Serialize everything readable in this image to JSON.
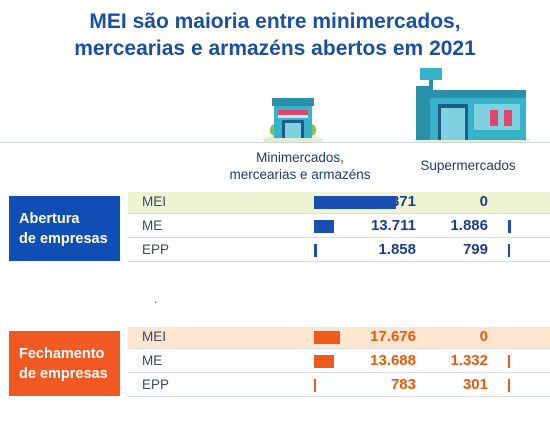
{
  "title_line1": "MEI são maioria entre minimercados,",
  "title_line2": "mercearias e armazéns abertos em 2021",
  "columns": {
    "col1_line1": "Minimercados,",
    "col1_line2": "mercearias e armazéns",
    "col2": "Supermercados"
  },
  "colors": {
    "blue": "#1a4fb0",
    "orange": "#ef5a1d",
    "row_highlight_blue": "#eef4d2",
    "row_highlight_orange": "#fde6cf"
  },
  "icons": {
    "minimarket": "small-store-icon",
    "supermarket": "supermarket-icon"
  },
  "stray_mark": ".",
  "chart_data": [
    {
      "type": "bar",
      "group": "Abertura de empresas",
      "group_line1": "Abertura",
      "group_line2": "de empresas",
      "categories": [
        "MEI",
        "ME",
        "EPP"
      ],
      "series": [
        {
          "name": "Minimercados, mercearias e armazéns",
          "values": [
            56371,
            13711,
            1858
          ],
          "labels": [
            "56.371",
            "13.711",
            "1.858"
          ]
        },
        {
          "name": "Supermercados",
          "values": [
            0,
            1886,
            799
          ],
          "labels": [
            "0",
            "1.886",
            "799"
          ]
        }
      ]
    },
    {
      "type": "bar",
      "group": "Fechamento de empresas",
      "group_line1": "Fechamento",
      "group_line2": "de empresas",
      "categories": [
        "MEI",
        "ME",
        "EPP"
      ],
      "series": [
        {
          "name": "Minimercados, mercearias e armazéns",
          "values": [
            17676,
            13688,
            783
          ],
          "labels": [
            "17.676",
            "13.688",
            "783"
          ]
        },
        {
          "name": "Supermercados",
          "values": [
            0,
            1332,
            301
          ],
          "labels": [
            "0",
            "1.332",
            "301"
          ]
        }
      ]
    }
  ]
}
